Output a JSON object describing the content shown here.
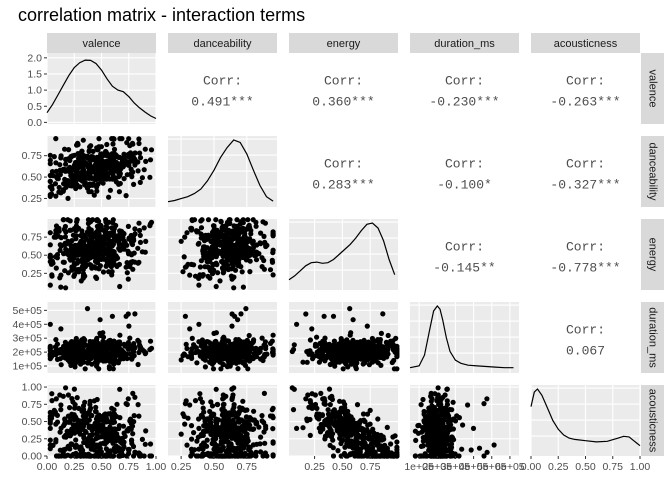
{
  "title": "correlation matrix - interaction terms",
  "chart_data": {
    "type": "scatter-matrix",
    "variables": [
      "valence",
      "danceability",
      "energy",
      "duration_ms",
      "acousticness"
    ],
    "corr_label": "Corr:",
    "correlations": [
      {
        "row": 0,
        "col": 1,
        "value": "0.491***"
      },
      {
        "row": 0,
        "col": 2,
        "value": "0.360***"
      },
      {
        "row": 0,
        "col": 3,
        "value": "-0.230***"
      },
      {
        "row": 0,
        "col": 4,
        "value": "-0.263***"
      },
      {
        "row": 1,
        "col": 2,
        "value": "0.283***"
      },
      {
        "row": 1,
        "col": 3,
        "value": "-0.100*"
      },
      {
        "row": 1,
        "col": 4,
        "value": "-0.327***"
      },
      {
        "row": 2,
        "col": 3,
        "value": "-0.145**"
      },
      {
        "row": 2,
        "col": 4,
        "value": "-0.778***"
      },
      {
        "row": 3,
        "col": 4,
        "value": "0.067"
      }
    ],
    "x_axes": [
      {
        "lim": [
          0,
          1.0
        ],
        "ticks": [
          0,
          0.25,
          0.5,
          0.75,
          1.0
        ],
        "labels": [
          "0.00",
          "0.25",
          "0.50",
          "0.75",
          "1.00"
        ]
      },
      {
        "lim": [
          0.15,
          0.98
        ],
        "ticks": [
          0.25,
          0.5,
          0.75
        ],
        "labels": [
          "0.25",
          "0.50",
          "0.75"
        ]
      },
      {
        "lim": [
          0.02,
          1.0
        ],
        "ticks": [
          0.25,
          0.5,
          0.75
        ],
        "labels": [
          "0.25",
          "0.50",
          "0.75"
        ]
      },
      {
        "lim": [
          50000,
          650000
        ],
        "ticks": [
          100000,
          200000,
          300000,
          400000,
          500000,
          600000
        ],
        "labels": [
          "1e+05",
          "2e+05",
          "3e+05",
          "4e+05",
          "5e+05",
          "6e+05"
        ]
      },
      {
        "lim": [
          0,
          1.0
        ],
        "ticks": [
          0,
          0.25,
          0.5,
          0.75,
          1.0
        ],
        "labels": [
          "0.00",
          "0.25",
          "0.50",
          "0.75",
          "1.00"
        ]
      }
    ],
    "y_axes": [
      {
        "lim": [
          -0.05,
          2.15
        ],
        "ticks": [
          0,
          0.5,
          1.0,
          1.5,
          2.0
        ],
        "labels": [
          "0.0",
          "0.5",
          "1.0",
          "1.5",
          "2.0"
        ]
      },
      {
        "lim": [
          0.15,
          0.98
        ],
        "ticks": [
          0.25,
          0.5,
          0.75
        ],
        "labels": [
          "0.25",
          "0.50",
          "0.75"
        ]
      },
      {
        "lim": [
          0.02,
          1.0
        ],
        "ticks": [
          0.25,
          0.5,
          0.75
        ],
        "labels": [
          "0.25",
          "0.50",
          "0.75"
        ]
      },
      {
        "lim": [
          50000,
          560000
        ],
        "ticks": [
          100000,
          200000,
          300000,
          400000,
          500000
        ],
        "labels": [
          "1e+05",
          "2e+05",
          "3e+05",
          "4e+05",
          "5e+05"
        ]
      },
      {
        "lim": [
          0,
          1.03
        ],
        "ticks": [
          0,
          0.25,
          0.5,
          0.75,
          1.0
        ],
        "labels": [
          "0.00",
          "0.25",
          "0.50",
          "0.75",
          "1.00"
        ]
      }
    ],
    "density_curves": [
      {
        "x": [
          0.0,
          0.05,
          0.1,
          0.15,
          0.2,
          0.25,
          0.3,
          0.35,
          0.4,
          0.45,
          0.5,
          0.55,
          0.6,
          0.65,
          0.7,
          0.75,
          0.8,
          0.85,
          0.9,
          0.95,
          1.0
        ],
        "y": [
          0.3,
          0.55,
          0.85,
          1.15,
          1.45,
          1.7,
          1.85,
          1.93,
          1.92,
          1.82,
          1.62,
          1.35,
          1.12,
          1.0,
          0.95,
          0.8,
          0.6,
          0.45,
          0.32,
          0.2,
          0.12
        ]
      },
      {
        "x": [
          0.15,
          0.2,
          0.25,
          0.3,
          0.35,
          0.4,
          0.45,
          0.5,
          0.55,
          0.6,
          0.65,
          0.7,
          0.75,
          0.8,
          0.85,
          0.9,
          0.95
        ],
        "y": [
          0.02,
          0.04,
          0.07,
          0.1,
          0.15,
          0.22,
          0.35,
          0.52,
          0.72,
          0.88,
          1.0,
          0.96,
          0.78,
          0.52,
          0.28,
          0.1,
          0.03
        ]
      },
      {
        "x": [
          0.02,
          0.07,
          0.12,
          0.17,
          0.22,
          0.27,
          0.32,
          0.37,
          0.42,
          0.47,
          0.52,
          0.57,
          0.62,
          0.67,
          0.72,
          0.77,
          0.82,
          0.87,
          0.92,
          0.97
        ],
        "y": [
          0.1,
          0.16,
          0.24,
          0.32,
          0.37,
          0.38,
          0.36,
          0.37,
          0.42,
          0.5,
          0.58,
          0.66,
          0.76,
          0.88,
          0.98,
          1.0,
          0.92,
          0.72,
          0.42,
          0.18
        ]
      },
      {
        "x": [
          50000,
          100000,
          130000,
          160000,
          180000,
          200000,
          215000,
          230000,
          250000,
          270000,
          300000,
          330000,
          370000,
          420000,
          470000,
          520000,
          570000,
          620000
        ],
        "y": [
          0.02,
          0.05,
          0.22,
          0.65,
          0.92,
          1.0,
          0.95,
          0.78,
          0.5,
          0.28,
          0.14,
          0.09,
          0.06,
          0.05,
          0.04,
          0.03,
          0.02,
          0.02
        ]
      },
      {
        "x": [
          0.0,
          0.03,
          0.06,
          0.1,
          0.15,
          0.2,
          0.25,
          0.3,
          0.35,
          0.4,
          0.5,
          0.6,
          0.7,
          0.8,
          0.85,
          0.9,
          0.95,
          1.0
        ],
        "y": [
          0.72,
          0.95,
          1.0,
          0.9,
          0.7,
          0.5,
          0.36,
          0.27,
          0.22,
          0.2,
          0.18,
          0.16,
          0.17,
          0.22,
          0.25,
          0.24,
          0.17,
          0.1
        ]
      }
    ]
  }
}
